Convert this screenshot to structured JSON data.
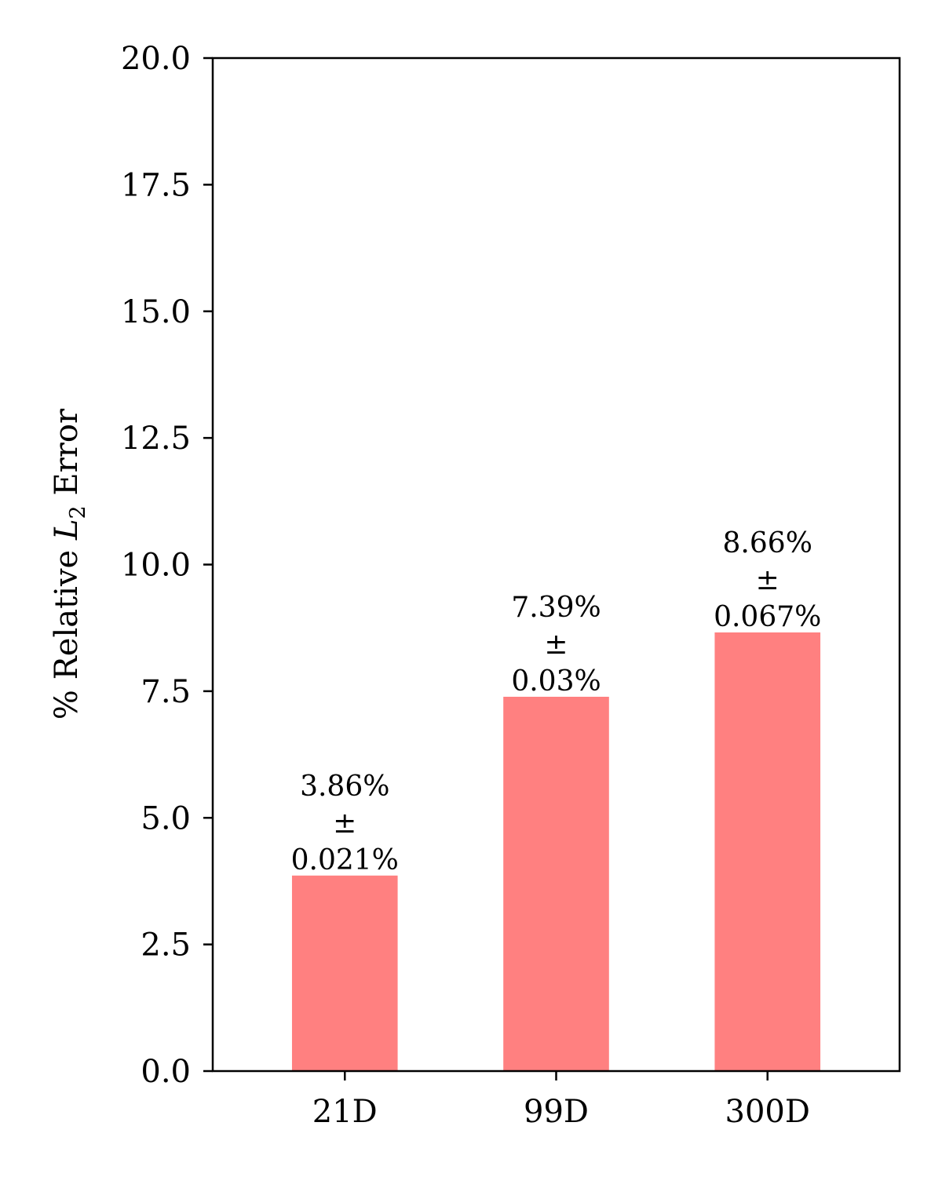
{
  "chart_data": {
    "type": "bar",
    "categories": [
      "21D",
      "99D",
      "300D"
    ],
    "values": [
      3.86,
      7.39,
      8.66
    ],
    "errors": [
      0.021,
      0.03,
      0.067
    ],
    "bar_labels": [
      [
        "3.86%",
        "±",
        "0.021%"
      ],
      [
        "7.39%",
        "±",
        "0.03%"
      ],
      [
        "8.66%",
        "±",
        "0.067%"
      ]
    ],
    "ylabel": {
      "prefix": "% Relative ",
      "symbol": "L",
      "subscript": "2",
      "suffix": " Error"
    },
    "ylim": [
      0,
      20
    ],
    "yticks": [
      0,
      2.5,
      5,
      7.5,
      10,
      12.5,
      15,
      17.5,
      20
    ],
    "ytick_labels": [
      "0.0",
      "2.5",
      "5.0",
      "7.5",
      "10.0",
      "12.5",
      "15.0",
      "17.5",
      "20.0"
    ],
    "grid": false,
    "bar_color": "#ff8080"
  }
}
